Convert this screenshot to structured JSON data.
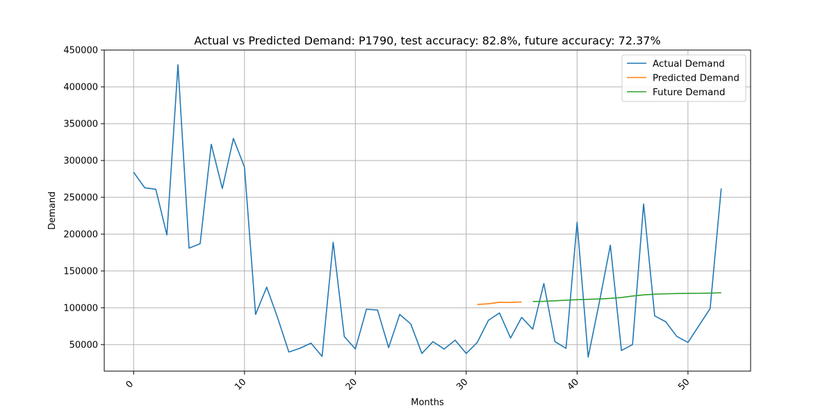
{
  "chart_data": {
    "type": "line",
    "title": "Actual vs Predicted Demand: P1790, test accuracy: 82.8%, future accuracy: 72.37%",
    "xlabel": "Months",
    "ylabel": "Demand",
    "xlim": [
      -2.65,
      55.65
    ],
    "ylim": [
      14000,
      450000
    ],
    "xticks": [
      0,
      10,
      20,
      30,
      40,
      50
    ],
    "yticks": [
      50000,
      100000,
      150000,
      200000,
      250000,
      300000,
      350000,
      400000,
      450000
    ],
    "grid": true,
    "legend_position": "top-right",
    "series": [
      {
        "name": "Actual Demand",
        "color": "#1f77b4",
        "x": [
          0,
          1,
          2,
          3,
          4,
          5,
          6,
          7,
          8,
          9,
          10,
          11,
          12,
          13,
          14,
          15,
          16,
          17,
          18,
          19,
          20,
          21,
          22,
          23,
          24,
          25,
          26,
          27,
          28,
          29,
          30,
          31,
          32,
          33,
          34,
          35,
          36,
          37,
          38,
          39,
          40,
          41,
          42,
          43,
          44,
          45,
          46,
          47,
          48,
          49,
          50,
          51,
          52,
          53
        ],
        "values": [
          284000,
          263000,
          261000,
          199000,
          430000,
          181000,
          187000,
          322000,
          262000,
          330000,
          291000,
          91000,
          128000,
          86000,
          40000,
          45000,
          52000,
          34000,
          189000,
          61000,
          44000,
          98000,
          97000,
          46000,
          91000,
          78000,
          38000,
          54000,
          44000,
          56000,
          38000,
          53000,
          83000,
          93000,
          59000,
          87000,
          71000,
          133000,
          54000,
          45000,
          216000,
          33000,
          107000,
          185000,
          42000,
          50000,
          241000,
          89000,
          81000,
          61000,
          53000,
          76000,
          99000,
          262000
        ]
      },
      {
        "name": "Predicted Demand",
        "color": "#ff7f0e",
        "x": [
          31,
          32,
          33,
          34,
          35
        ],
        "values": [
          104500,
          105500,
          107500,
          107300,
          108000
        ]
      },
      {
        "name": "Future Demand",
        "color": "#2ca02c",
        "x": [
          36,
          37,
          38,
          39,
          40,
          41,
          42,
          43,
          44,
          45,
          46,
          47,
          48,
          49,
          50,
          51,
          52,
          53
        ],
        "values": [
          108500,
          108800,
          109500,
          110300,
          111000,
          111500,
          112000,
          112800,
          114000,
          116000,
          117500,
          118500,
          119000,
          119400,
          119500,
          119700,
          120000,
          120400
        ]
      }
    ]
  }
}
